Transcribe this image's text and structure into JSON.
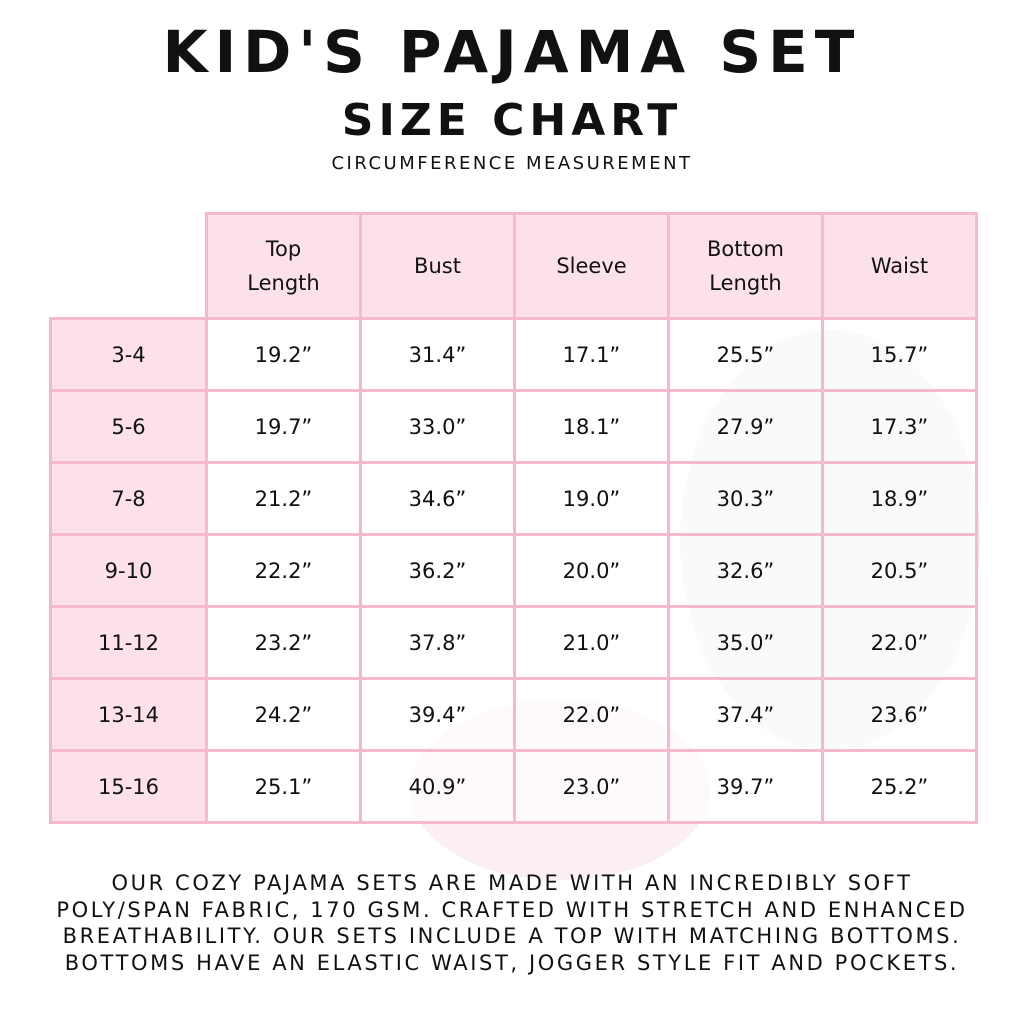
{
  "title": "KID'S PAJAMA SET",
  "subtitle": "SIZE CHART",
  "note": "CIRCUMFERENCE MEASUREMENT",
  "colors": {
    "border": "#f5b9cc",
    "header_fill": "#fde1ea",
    "text": "#111111"
  },
  "table": {
    "headers": [
      "Top\nLength",
      "Bust",
      "Sleeve",
      "Bottom\nLength",
      "Waist"
    ],
    "rows": [
      {
        "size": "3-4",
        "values": [
          "19.2”",
          "31.4”",
          "17.1”",
          "25.5”",
          "15.7”"
        ]
      },
      {
        "size": "5-6",
        "values": [
          "19.7”",
          "33.0”",
          "18.1”",
          "27.9”",
          "17.3”"
        ]
      },
      {
        "size": "7-8",
        "values": [
          "21.2”",
          "34.6”",
          "19.0”",
          "30.3”",
          "18.9”"
        ]
      },
      {
        "size": "9-10",
        "values": [
          "22.2”",
          "36.2”",
          "20.0”",
          "32.6”",
          "20.5”"
        ]
      },
      {
        "size": "11-12",
        "values": [
          "23.2”",
          "37.8”",
          "21.0”",
          "35.0”",
          "22.0”"
        ]
      },
      {
        "size": "13-14",
        "values": [
          "24.2”",
          "39.4”",
          "22.0”",
          "37.4”",
          "23.6”"
        ]
      },
      {
        "size": "15-16",
        "values": [
          "25.1”",
          "40.9”",
          "23.0”",
          "39.7”",
          "25.2”"
        ]
      }
    ]
  },
  "description": [
    "OUR COZY PAJAMA SETS ARE MADE WITH AN INCREDIBLY SOFT",
    "POLY/SPAN FABRIC, 170 GSM. CRAFTED WITH STRETCH AND ENHANCED",
    "BREATHABILITY. OUR SETS INCLUDE A TOP WITH MATCHING BOTTOMS.",
    "BOTTOMS HAVE AN ELASTIC WAIST, JOGGER STYLE FIT AND POCKETS."
  ]
}
